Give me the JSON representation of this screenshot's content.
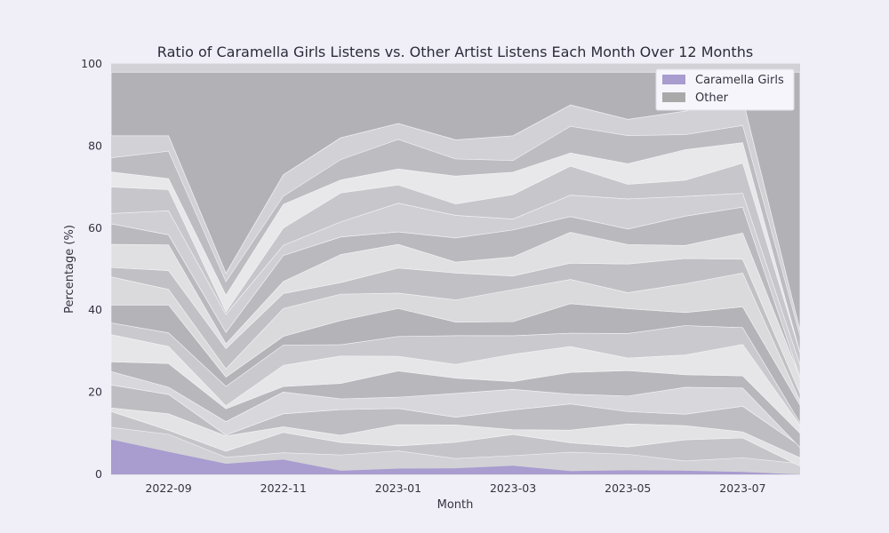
{
  "chart_data": {
    "type": "area",
    "title": "Ratio of Caramella Girls Listens vs. Other Artist Listens Each Month Over 12 Months",
    "xlabel": "Month",
    "ylabel": "Percentage (%)",
    "ylim": [
      0,
      100
    ],
    "grid": true,
    "legend_placement": "top-right",
    "x": [
      "2022-08",
      "2022-09",
      "2022-10",
      "2022-11",
      "2022-12",
      "2023-01",
      "2023-02",
      "2023-03",
      "2023-04",
      "2023-05",
      "2023-06",
      "2023-07",
      "2023-08"
    ],
    "x_tick_labels": [
      "2022-09",
      "2022-11",
      "2023-01",
      "2023-03",
      "2023-05",
      "2023-07"
    ],
    "y_ticks": [
      0,
      20,
      40,
      60,
      80,
      100
    ],
    "series": [
      {
        "name": "Caramella Girls",
        "color": "#a99ccf",
        "values": [
          8.5,
          5.5,
          2.6,
          3.6,
          0.9,
          1.4,
          1.5,
          2.1,
          0.8,
          1.0,
          0.9,
          0.6,
          0.0
        ]
      },
      {
        "name": "Other",
        "color": "#a9a9a9",
        "values": [
          91.5,
          94.5,
          97.4,
          96.4,
          99.1,
          98.6,
          98.5,
          97.9,
          99.2,
          99.0,
          99.1,
          99.4,
          100.0
        ]
      }
    ],
    "other_dominant_band_bottom": [
      82.5,
      82.5,
      49.0,
      73.0,
      82.0,
      85.5,
      81.5,
      82.5,
      90.0,
      86.5,
      88.5,
      91.5,
      35.0
    ]
  }
}
